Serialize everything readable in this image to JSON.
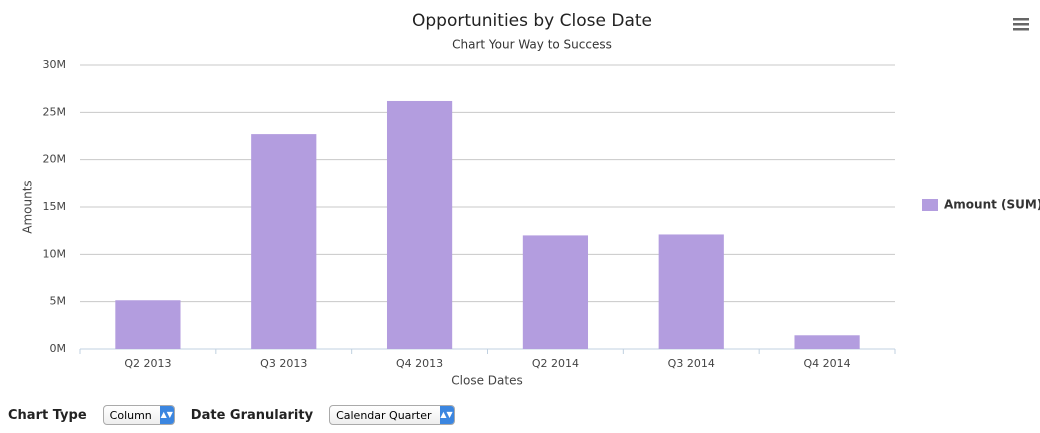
{
  "chart_data": {
    "type": "bar",
    "title": "Opportunities by Close Date",
    "subtitle": "Chart Your Way to Success",
    "x_label": "Close Dates",
    "y_label": "Amounts",
    "categories": [
      "Q2 2013",
      "Q3 2013",
      "Q4 2013",
      "Q2 2014",
      "Q3 2014",
      "Q4 2014"
    ],
    "series": [
      {
        "name": "Amount (SUM)",
        "color": "#b39ddf",
        "values": [
          5150000,
          22700000,
          26200000,
          12000000,
          12100000,
          1450000
        ]
      }
    ],
    "ylim": [
      0,
      30000000
    ],
    "yticks": [
      {
        "value": 0,
        "label": "0M"
      },
      {
        "value": 5000000,
        "label": "5M"
      },
      {
        "value": 10000000,
        "label": "10M"
      },
      {
        "value": 15000000,
        "label": "15M"
      },
      {
        "value": 20000000,
        "label": "20M"
      },
      {
        "value": 25000000,
        "label": "25M"
      },
      {
        "value": 30000000,
        "label": "30M"
      }
    ],
    "grid": true,
    "legend": "right"
  },
  "controls": [
    {
      "label": "Chart Type",
      "value": "Column"
    },
    {
      "label": "Date Granularity",
      "value": "Calendar Quarter"
    }
  ]
}
